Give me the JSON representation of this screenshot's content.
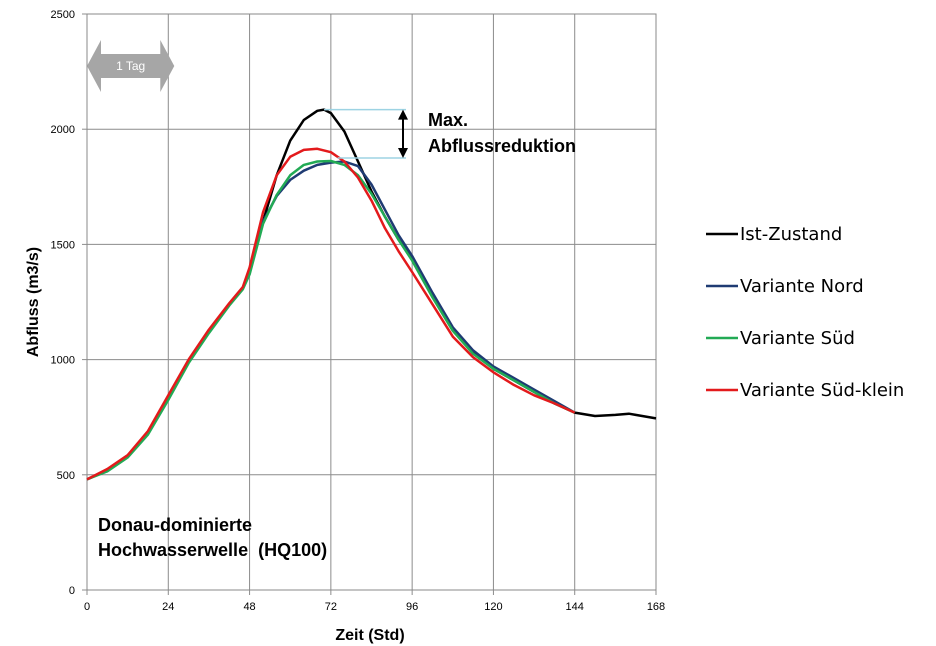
{
  "chart_data": {
    "type": "line",
    "xlabel": "Zeit (Std)",
    "ylabel": "Abfluss (m3/s)",
    "xlim": [
      0,
      168
    ],
    "ylim": [
      0,
      2500
    ],
    "xticks": [
      0,
      24,
      48,
      72,
      96,
      120,
      144,
      168
    ],
    "yticks": [
      0,
      500,
      1000,
      1500,
      2000,
      2500
    ],
    "grid": true,
    "legend_position": "right",
    "series": [
      {
        "name": "Ist-Zustand",
        "color": "#000000",
        "x": [
          0,
          6,
          12,
          18,
          24,
          30,
          36,
          42,
          46,
          48,
          52,
          56,
          60,
          64,
          68,
          70,
          72,
          76,
          80,
          84,
          88,
          92,
          96,
          102,
          108,
          114,
          120,
          126,
          132,
          138,
          144,
          150,
          156,
          160,
          162,
          168
        ],
        "y": [
          480,
          520,
          580,
          680,
          830,
          990,
          1120,
          1240,
          1310,
          1380,
          1600,
          1800,
          1950,
          2040,
          2080,
          2085,
          2070,
          1990,
          1860,
          1730,
          1620,
          1520,
          1440,
          1280,
          1130,
          1030,
          960,
          910,
          860,
          810,
          770,
          755,
          760,
          765,
          760,
          745
        ]
      },
      {
        "name": "Variante Nord",
        "color": "#1f3b73",
        "x": [
          0,
          6,
          12,
          18,
          24,
          30,
          36,
          42,
          46,
          48,
          52,
          56,
          60,
          64,
          68,
          72,
          76,
          80,
          84,
          88,
          92,
          96,
          102,
          108,
          114,
          120,
          126,
          132,
          138,
          144
        ],
        "y": [
          480,
          520,
          580,
          680,
          830,
          990,
          1120,
          1240,
          1310,
          1380,
          1600,
          1710,
          1780,
          1820,
          1845,
          1855,
          1860,
          1840,
          1760,
          1650,
          1540,
          1450,
          1290,
          1140,
          1040,
          970,
          920,
          870,
          820,
          770
        ]
      },
      {
        "name": "Variante Süd",
        "color": "#22aa55",
        "x": [
          0,
          6,
          12,
          18,
          24,
          30,
          36,
          42,
          46,
          48,
          52,
          56,
          60,
          64,
          68,
          72,
          76,
          80,
          84,
          88,
          92,
          96,
          102,
          108,
          114,
          120,
          126,
          132,
          138,
          144
        ],
        "y": [
          480,
          515,
          575,
          675,
          825,
          985,
          1115,
          1235,
          1305,
          1370,
          1590,
          1715,
          1800,
          1845,
          1860,
          1862,
          1845,
          1800,
          1720,
          1620,
          1520,
          1430,
          1270,
          1125,
          1025,
          960,
          910,
          860,
          810,
          770
        ]
      },
      {
        "name": "Variante Süd-klein",
        "color": "#e31a1c",
        "x": [
          0,
          6,
          12,
          18,
          24,
          30,
          36,
          42,
          46,
          48,
          52,
          56,
          60,
          64,
          68,
          72,
          76,
          80,
          84,
          88,
          92,
          96,
          102,
          108,
          114,
          120,
          126,
          132,
          138,
          144
        ],
        "y": [
          480,
          525,
          585,
          690,
          845,
          1000,
          1130,
          1245,
          1315,
          1400,
          1640,
          1800,
          1880,
          1910,
          1915,
          1900,
          1860,
          1790,
          1690,
          1570,
          1470,
          1380,
          1240,
          1100,
          1010,
          945,
          890,
          845,
          810,
          770
        ]
      }
    ],
    "annotations": {
      "reduction_label_line1": "Max.",
      "reduction_label_line2": "Abflussreduktion",
      "reduction_from": 2085,
      "reduction_to": 1862,
      "event_label_line1": "Donau-dominierte",
      "event_label_line2": "Hochwasserwelle  (HQ100)",
      "tag_label": "1 Tag",
      "tag_span_hours": 24
    }
  }
}
